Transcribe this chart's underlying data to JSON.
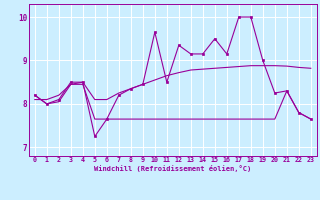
{
  "xlabel": "Windchill (Refroidissement éolien,°C)",
  "bg_color": "#cceeff",
  "line_color": "#990099",
  "grid_color": "#ffffff",
  "xticks": [
    0,
    1,
    2,
    3,
    4,
    5,
    6,
    7,
    8,
    9,
    10,
    11,
    12,
    13,
    14,
    15,
    16,
    17,
    18,
    19,
    20,
    21,
    22,
    23
  ],
  "yticks": [
    7,
    8,
    9,
    10
  ],
  "ylim": [
    6.8,
    10.3
  ],
  "xlim": [
    -0.5,
    23.5
  ],
  "series": {
    "line_jagged_x": [
      0,
      1,
      2,
      3,
      4,
      5,
      6,
      7,
      8,
      9,
      10,
      11,
      12,
      13,
      14,
      15,
      16,
      17,
      18,
      19,
      20,
      21,
      22,
      23
    ],
    "line_jagged_y": [
      8.2,
      8.0,
      8.1,
      8.5,
      8.5,
      7.25,
      7.65,
      8.2,
      8.35,
      8.45,
      9.65,
      8.5,
      9.35,
      9.15,
      9.15,
      9.5,
      9.15,
      10.0,
      10.0,
      9.0,
      8.25,
      8.3,
      7.8,
      7.65
    ],
    "line_trend_x": [
      0,
      1,
      2,
      3,
      4,
      5,
      6,
      7,
      8,
      9,
      10,
      11,
      12,
      13,
      14,
      15,
      16,
      17,
      18,
      19,
      20,
      21,
      22,
      23
    ],
    "line_trend_y": [
      8.1,
      8.1,
      8.2,
      8.45,
      8.5,
      8.1,
      8.1,
      8.25,
      8.35,
      8.45,
      8.55,
      8.65,
      8.72,
      8.78,
      8.8,
      8.82,
      8.84,
      8.86,
      8.88,
      8.88,
      8.88,
      8.87,
      8.84,
      8.82
    ],
    "line_flat_x": [
      0,
      1,
      2,
      3,
      4,
      5,
      6,
      7,
      8,
      9,
      10,
      11,
      12,
      13,
      14,
      15,
      16,
      17,
      18,
      19,
      20,
      21,
      22,
      23
    ],
    "line_flat_y": [
      8.2,
      8.0,
      8.05,
      8.45,
      8.45,
      7.65,
      7.65,
      7.65,
      7.65,
      7.65,
      7.65,
      7.65,
      7.65,
      7.65,
      7.65,
      7.65,
      7.65,
      7.65,
      7.65,
      7.65,
      7.65,
      8.3,
      7.8,
      7.65
    ]
  }
}
